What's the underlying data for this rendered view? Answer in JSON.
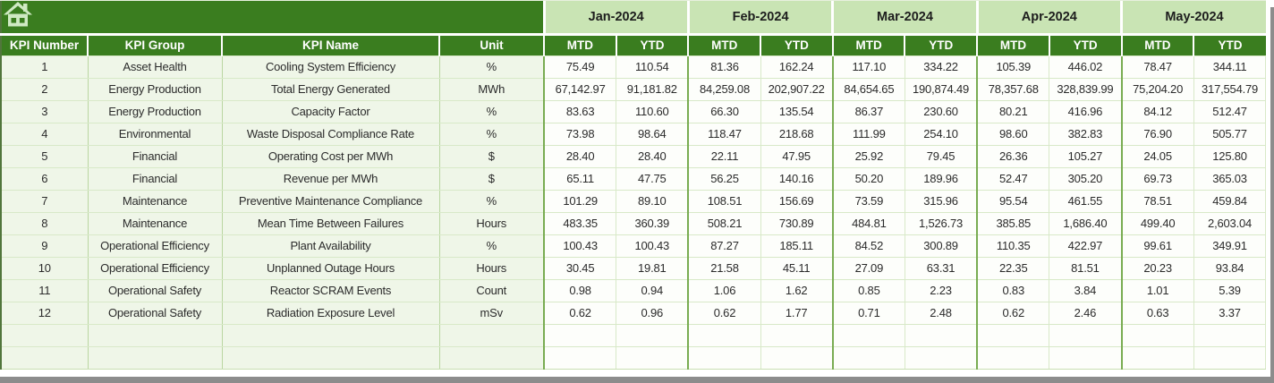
{
  "colors": {
    "header_green": "#3a7d1f",
    "month_band_green": "#c9e4b4",
    "left_column_fill": "#eff6e8",
    "grid_light": "#d8e9c8",
    "grid_medium": "#79ac52",
    "window_border_gray": "#8c8c8c",
    "home_icon_fill": "#cfe9c3"
  },
  "icons": {
    "home": "house-with-chimney"
  },
  "table": {
    "left_headers": [
      "KPI Number",
      "KPI Group",
      "KPI Name",
      "Unit"
    ],
    "months": [
      "Jan-2024",
      "Feb-2024",
      "Mar-2024",
      "Apr-2024",
      "May-2024"
    ],
    "sub_headers": [
      "MTD",
      "YTD"
    ],
    "rows": [
      {
        "number": "1",
        "group": "Asset Health",
        "name": "Cooling System Efficiency",
        "unit": "%",
        "values": [
          "75.49",
          "110.54",
          "81.36",
          "162.24",
          "117.10",
          "334.22",
          "105.39",
          "446.02",
          "78.47",
          "344.11"
        ]
      },
      {
        "number": "2",
        "group": "Energy Production",
        "name": "Total Energy Generated",
        "unit": "MWh",
        "values": [
          "67,142.97",
          "91,181.82",
          "84,259.08",
          "202,907.22",
          "84,654.65",
          "190,874.49",
          "78,357.68",
          "328,839.99",
          "75,204.20",
          "317,554.79"
        ]
      },
      {
        "number": "3",
        "group": "Energy Production",
        "name": "Capacity Factor",
        "unit": "%",
        "values": [
          "83.63",
          "110.60",
          "66.30",
          "135.54",
          "86.37",
          "230.60",
          "80.21",
          "416.96",
          "84.12",
          "512.47"
        ]
      },
      {
        "number": "4",
        "group": "Environmental",
        "name": "Waste Disposal Compliance Rate",
        "unit": "%",
        "values": [
          "73.98",
          "98.64",
          "118.47",
          "218.68",
          "111.99",
          "254.10",
          "98.60",
          "382.83",
          "76.90",
          "505.77"
        ]
      },
      {
        "number": "5",
        "group": "Financial",
        "name": "Operating Cost per MWh",
        "unit": "$",
        "values": [
          "28.40",
          "28.40",
          "22.11",
          "47.95",
          "25.92",
          "79.45",
          "26.36",
          "105.27",
          "24.05",
          "125.80"
        ]
      },
      {
        "number": "6",
        "group": "Financial",
        "name": "Revenue per MWh",
        "unit": "$",
        "values": [
          "65.11",
          "47.75",
          "56.25",
          "140.16",
          "50.20",
          "189.96",
          "52.47",
          "305.20",
          "69.73",
          "365.03"
        ]
      },
      {
        "number": "7",
        "group": "Maintenance",
        "name": "Preventive Maintenance Compliance",
        "unit": "%",
        "values": [
          "101.29",
          "89.10",
          "108.51",
          "156.69",
          "73.59",
          "315.96",
          "95.54",
          "461.55",
          "78.51",
          "459.84"
        ]
      },
      {
        "number": "8",
        "group": "Maintenance",
        "name": "Mean Time Between Failures",
        "unit": "Hours",
        "values": [
          "483.35",
          "360.39",
          "508.21",
          "730.89",
          "484.81",
          "1,526.73",
          "385.85",
          "1,686.40",
          "499.40",
          "2,603.04"
        ]
      },
      {
        "number": "9",
        "group": "Operational Efficiency",
        "name": "Plant Availability",
        "unit": "%",
        "values": [
          "100.43",
          "100.43",
          "87.27",
          "185.11",
          "84.52",
          "300.89",
          "110.35",
          "422.97",
          "99.61",
          "349.91"
        ]
      },
      {
        "number": "10",
        "group": "Operational Efficiency",
        "name": "Unplanned Outage Hours",
        "unit": "Hours",
        "values": [
          "30.45",
          "19.81",
          "21.58",
          "45.11",
          "27.09",
          "63.31",
          "22.35",
          "81.51",
          "20.23",
          "93.84"
        ]
      },
      {
        "number": "11",
        "group": "Operational Safety",
        "name": "Reactor SCRAM Events",
        "unit": "Count",
        "values": [
          "0.98",
          "0.94",
          "1.06",
          "1.62",
          "0.85",
          "2.23",
          "0.83",
          "3.84",
          "1.01",
          "5.39"
        ]
      },
      {
        "number": "12",
        "group": "Operational Safety",
        "name": "Radiation Exposure Level",
        "unit": "mSv",
        "values": [
          "0.62",
          "0.96",
          "0.62",
          "1.77",
          "0.71",
          "2.48",
          "0.62",
          "2.46",
          "0.63",
          "3.37"
        ]
      }
    ],
    "empty_rows": 2
  }
}
